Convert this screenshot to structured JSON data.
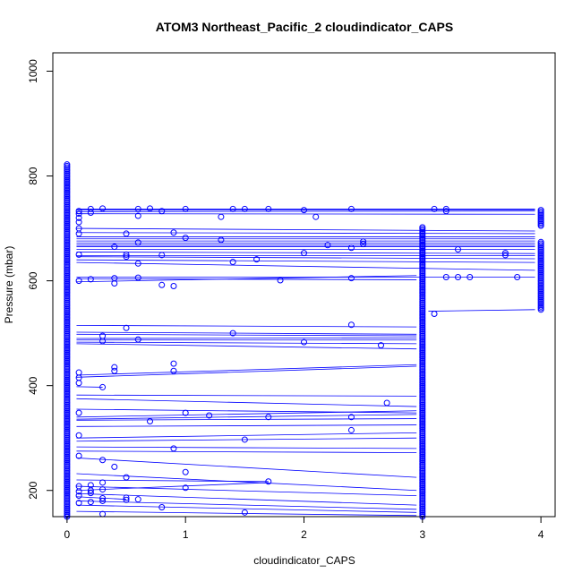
{
  "chart_data": {
    "type": "scatter",
    "title": "ATOM3 Northeast_Pacific_2 cloudindicator_CAPS",
    "xlabel": "cloudindicator_CAPS",
    "ylabel": "Pressure (mbar)",
    "xlim": [
      -0.12,
      4.12
    ],
    "ylim": [
      1035,
      150
    ],
    "y_reversed": true,
    "xticks": [
      0,
      1,
      2,
      3,
      4
    ],
    "yticks": [
      200,
      400,
      600,
      800,
      1000
    ],
    "grid": false,
    "legend": "none",
    "series_color": "#0000ff",
    "vertical_stacks": [
      {
        "x": 0,
        "p_min": 150,
        "p_max": 822
      },
      {
        "x": 3,
        "p_min": 150,
        "p_max": 703
      },
      {
        "x": 4,
        "p_min": 545,
        "p_max": 675
      },
      {
        "x": 4,
        "p_min": 705,
        "p_max": 737
      }
    ],
    "points": [
      [
        0.3,
        155
      ],
      [
        1.5,
        158
      ],
      [
        0.8,
        168
      ],
      [
        0.1,
        176
      ],
      [
        0.2,
        178
      ],
      [
        0.3,
        180
      ],
      [
        0.5,
        182
      ],
      [
        0.6,
        183
      ],
      [
        0.3,
        185
      ],
      [
        0.5,
        186
      ],
      [
        0.1,
        190
      ],
      [
        0.2,
        195
      ],
      [
        0.1,
        198
      ],
      [
        0.2,
        200
      ],
      [
        0.3,
        202
      ],
      [
        1.0,
        205
      ],
      [
        0.1,
        208
      ],
      [
        0.2,
        210
      ],
      [
        0.3,
        215
      ],
      [
        1.7,
        217
      ],
      [
        0.5,
        225
      ],
      [
        1.0,
        235
      ],
      [
        0.4,
        245
      ],
      [
        0.3,
        258
      ],
      [
        0.1,
        266
      ],
      [
        0.9,
        280
      ],
      [
        1.5,
        297
      ],
      [
        0.1,
        305
      ],
      [
        2.4,
        315
      ],
      [
        0.7,
        332
      ],
      [
        1.7,
        340
      ],
      [
        1.2,
        343
      ],
      [
        2.4,
        340
      ],
      [
        1.0,
        348
      ],
      [
        0.1,
        348
      ],
      [
        2.7,
        367
      ],
      [
        0.3,
        397
      ],
      [
        0.1,
        405
      ],
      [
        0.1,
        415
      ],
      [
        0.1,
        425
      ],
      [
        0.4,
        428
      ],
      [
        0.9,
        428
      ],
      [
        0.4,
        435
      ],
      [
        0.9,
        442
      ],
      [
        2.65,
        477
      ],
      [
        2.0,
        483
      ],
      [
        0.3,
        485
      ],
      [
        0.6,
        488
      ],
      [
        0.3,
        495
      ],
      [
        1.4,
        500
      ],
      [
        0.5,
        510
      ],
      [
        2.4,
        516
      ],
      [
        3.1,
        537
      ],
      [
        0.8,
        592
      ],
      [
        0.9,
        590
      ],
      [
        0.4,
        595
      ],
      [
        0.1,
        600
      ],
      [
        0.2,
        603
      ],
      [
        1.8,
        601
      ],
      [
        0.4,
        605
      ],
      [
        0.6,
        606
      ],
      [
        2.4,
        605
      ],
      [
        3.2,
        607
      ],
      [
        3.3,
        607
      ],
      [
        3.4,
        607
      ],
      [
        3.8,
        607
      ],
      [
        1.4,
        636
      ],
      [
        0.6,
        633
      ],
      [
        1.6,
        641
      ],
      [
        0.1,
        650
      ],
      [
        0.5,
        646
      ],
      [
        0.8,
        649
      ],
      [
        3.7,
        649
      ],
      [
        3.7,
        653
      ],
      [
        2.0,
        653
      ],
      [
        0.5,
        650
      ],
      [
        0.4,
        665
      ],
      [
        2.2,
        668
      ],
      [
        2.4,
        663
      ],
      [
        2.5,
        670
      ],
      [
        2.5,
        675
      ],
      [
        0.6,
        673
      ],
      [
        3.3,
        660
      ],
      [
        1.3,
        678
      ],
      [
        1.0,
        682
      ],
      [
        0.1,
        690
      ],
      [
        0.5,
        690
      ],
      [
        0.9,
        692
      ],
      [
        0.1,
        700
      ],
      [
        0.1,
        712
      ],
      [
        0.1,
        720
      ],
      [
        1.3,
        722
      ],
      [
        0.6,
        724
      ],
      [
        2.1,
        722
      ],
      [
        0.1,
        728
      ],
      [
        0.2,
        730
      ],
      [
        0.8,
        733
      ],
      [
        0.1,
        733
      ],
      [
        0.2,
        737
      ],
      [
        0.3,
        738
      ],
      [
        0.6,
        737
      ],
      [
        0.7,
        738
      ],
      [
        1.0,
        737
      ],
      [
        1.4,
        737
      ],
      [
        1.5,
        737
      ],
      [
        1.7,
        737
      ],
      [
        2.0,
        735
      ],
      [
        2.4,
        737
      ],
      [
        3.1,
        737
      ],
      [
        3.2,
        737
      ],
      [
        3.2,
        733
      ]
    ],
    "connector_lines": [
      [
        0.08,
        160,
        2.95,
        152
      ],
      [
        0.08,
        172,
        2.95,
        158
      ],
      [
        0.08,
        180,
        2.95,
        164
      ],
      [
        0.08,
        188,
        0.5,
        183
      ],
      [
        0.08,
        194,
        2.95,
        172
      ],
      [
        0.08,
        200,
        1.7,
        215
      ],
      [
        0.08,
        208,
        2.95,
        190
      ],
      [
        0.08,
        220,
        1.7,
        217
      ],
      [
        0.08,
        232,
        2.95,
        200
      ],
      [
        0.08,
        262,
        2.95,
        225
      ],
      [
        0.08,
        275,
        2.95,
        272
      ],
      [
        0.08,
        283,
        2.95,
        280
      ],
      [
        0.08,
        294,
        2.95,
        300
      ],
      [
        0.08,
        300,
        2.95,
        310
      ],
      [
        0.08,
        322,
        2.95,
        325
      ],
      [
        0.08,
        334,
        2.95,
        337
      ],
      [
        0.08,
        336,
        2.95,
        345
      ],
      [
        0.08,
        340,
        2.95,
        352
      ],
      [
        0.08,
        355,
        2.95,
        348
      ],
      [
        0.08,
        375,
        2.95,
        360
      ],
      [
        0.08,
        382,
        2.95,
        380
      ],
      [
        0.08,
        398,
        0.3,
        397
      ],
      [
        0.08,
        416,
        2.95,
        437
      ],
      [
        0.08,
        420,
        2.95,
        440
      ],
      [
        0.08,
        480,
        2.95,
        470
      ],
      [
        0.08,
        483,
        2.95,
        480
      ],
      [
        0.08,
        487,
        2.95,
        487
      ],
      [
        0.08,
        490,
        2.95,
        491
      ],
      [
        0.08,
        498,
        2.95,
        495
      ],
      [
        0.08,
        502,
        2.95,
        498
      ],
      [
        0.08,
        515,
        2.95,
        512
      ],
      [
        0.08,
        598,
        2.95,
        610
      ],
      [
        0.08,
        604,
        2.95,
        602
      ],
      [
        0.08,
        607,
        3.95,
        607
      ],
      [
        0.08,
        635,
        3.95,
        620
      ],
      [
        0.08,
        640,
        3.95,
        635
      ],
      [
        0.08,
        646,
        3.95,
        642
      ],
      [
        0.08,
        648,
        3.95,
        648
      ],
      [
        0.08,
        655,
        3.95,
        652
      ],
      [
        0.08,
        660,
        3.95,
        660
      ],
      [
        0.08,
        665,
        3.95,
        665
      ],
      [
        0.08,
        668,
        3.95,
        668
      ],
      [
        0.08,
        672,
        3.95,
        672
      ],
      [
        0.08,
        676,
        3.95,
        676
      ],
      [
        0.08,
        680,
        3.95,
        680
      ],
      [
        0.08,
        684,
        3.95,
        684
      ],
      [
        0.08,
        692,
        3.95,
        690
      ],
      [
        0.08,
        700,
        3.95,
        695
      ],
      [
        0.08,
        728,
        3.95,
        727
      ],
      [
        0.08,
        732,
        3.95,
        733
      ],
      [
        0.08,
        735,
        3.95,
        735
      ],
      [
        0.08,
        737,
        3.95,
        737
      ],
      [
        3.05,
        542,
        3.95,
        545
      ]
    ]
  }
}
